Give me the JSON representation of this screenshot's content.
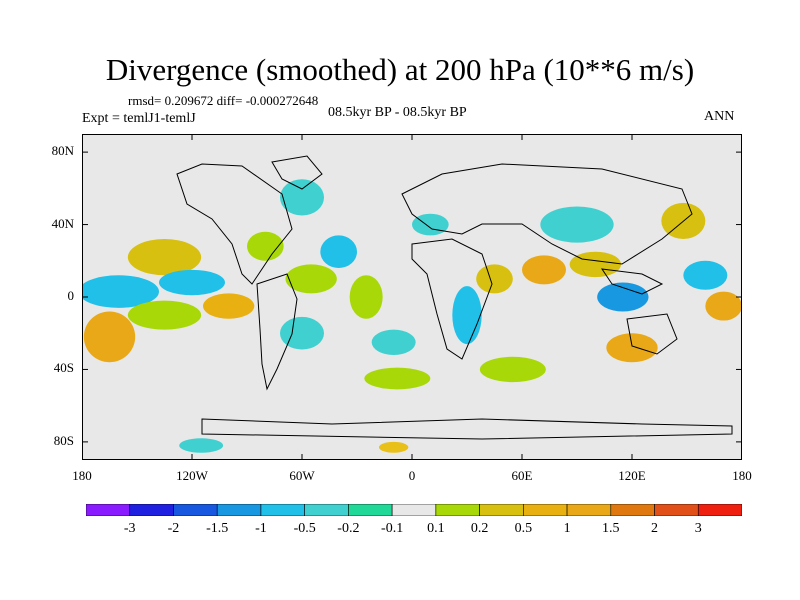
{
  "title": "Divergence (smoothed) at 200 hPa (10**6 m/s)",
  "stats": "rmsd= 0.209672 diff= -0.000272648",
  "experiment": "Expt = temlJ1-temlJ",
  "period": "08.5kyr BP - 08.5kyr BP",
  "season": "ANN",
  "map": {
    "projection": "cylindrical equidistant",
    "lon_range": [
      -180,
      180
    ],
    "lat_range": [
      -90,
      90
    ],
    "background_color": "#e8e8e8",
    "y_ticks": [
      {
        "lat": 80,
        "label": "80N"
      },
      {
        "lat": 40,
        "label": "40N"
      },
      {
        "lat": 0,
        "label": "0"
      },
      {
        "lat": -40,
        "label": "40S"
      },
      {
        "lat": -80,
        "label": "80S"
      }
    ],
    "x_ticks": [
      {
        "lon": -180,
        "label": "180"
      },
      {
        "lon": -120,
        "label": "120W"
      },
      {
        "lon": -60,
        "label": "60W"
      },
      {
        "lon": 0,
        "label": "0"
      },
      {
        "lon": 60,
        "label": "60E"
      },
      {
        "lon": 120,
        "label": "120E"
      },
      {
        "lon": 180,
        "label": "180"
      }
    ],
    "anomaly_blobs": [
      {
        "lon": -165,
        "lat": -22,
        "rlon": 14,
        "rlat": 14,
        "color": "#e8a818"
      },
      {
        "lon": -160,
        "lat": 3,
        "rlon": 22,
        "rlat": 9,
        "color": "#20c0e8"
      },
      {
        "lon": -135,
        "lat": 22,
        "rlon": 20,
        "rlat": 10,
        "color": "#d8c010"
      },
      {
        "lon": -135,
        "lat": -10,
        "rlon": 20,
        "rlat": 8,
        "color": "#a8d808"
      },
      {
        "lon": -120,
        "lat": 8,
        "rlon": 18,
        "rlat": 7,
        "color": "#20c0e8"
      },
      {
        "lon": -100,
        "lat": -5,
        "rlon": 14,
        "rlat": 7,
        "color": "#e8b010"
      },
      {
        "lon": -80,
        "lat": 28,
        "rlon": 10,
        "rlat": 8,
        "color": "#a8d808"
      },
      {
        "lon": -60,
        "lat": 55,
        "rlon": 12,
        "rlat": 10,
        "color": "#40d0d0"
      },
      {
        "lon": -55,
        "lat": 10,
        "rlon": 14,
        "rlat": 8,
        "color": "#a8d808"
      },
      {
        "lon": -60,
        "lat": -20,
        "rlon": 12,
        "rlat": 9,
        "color": "#40d0d0"
      },
      {
        "lon": -40,
        "lat": 25,
        "rlon": 10,
        "rlat": 9,
        "color": "#20c0e8"
      },
      {
        "lon": -25,
        "lat": 0,
        "rlon": 9,
        "rlat": 12,
        "color": "#a8d808"
      },
      {
        "lon": -10,
        "lat": -25,
        "rlon": 12,
        "rlat": 7,
        "color": "#40d0d0"
      },
      {
        "lon": -8,
        "lat": -45,
        "rlon": 18,
        "rlat": 6,
        "color": "#a8d808"
      },
      {
        "lon": 10,
        "lat": 40,
        "rlon": 10,
        "rlat": 6,
        "color": "#40d0d0"
      },
      {
        "lon": 30,
        "lat": -10,
        "rlon": 8,
        "rlat": 16,
        "color": "#20c0e8"
      },
      {
        "lon": 45,
        "lat": 10,
        "rlon": 10,
        "rlat": 8,
        "color": "#d8c010"
      },
      {
        "lon": 55,
        "lat": -40,
        "rlon": 18,
        "rlat": 7,
        "color": "#a8d808"
      },
      {
        "lon": 72,
        "lat": 15,
        "rlon": 12,
        "rlat": 8,
        "color": "#e8a818"
      },
      {
        "lon": 90,
        "lat": 40,
        "rlon": 20,
        "rlat": 10,
        "color": "#40d0d0"
      },
      {
        "lon": 100,
        "lat": 18,
        "rlon": 14,
        "rlat": 7,
        "color": "#d8c010"
      },
      {
        "lon": 115,
        "lat": 0,
        "rlon": 14,
        "rlat": 8,
        "color": "#1898e0"
      },
      {
        "lon": 120,
        "lat": -28,
        "rlon": 14,
        "rlat": 8,
        "color": "#e8a818"
      },
      {
        "lon": 148,
        "lat": 42,
        "rlon": 12,
        "rlat": 10,
        "color": "#d8c010"
      },
      {
        "lon": 160,
        "lat": 12,
        "rlon": 12,
        "rlat": 8,
        "color": "#20c0e8"
      },
      {
        "lon": 170,
        "lat": -5,
        "rlon": 10,
        "rlat": 8,
        "color": "#e8a818"
      },
      {
        "lon": -115,
        "lat": -82,
        "rlon": 12,
        "rlat": 4,
        "color": "#40d0d0"
      },
      {
        "lon": -10,
        "lat": -83,
        "rlon": 8,
        "rlat": 3,
        "color": "#e8c018"
      }
    ]
  },
  "colorbar": {
    "labels": [
      "-3",
      "-2",
      "-1.5",
      "-1",
      "-0.5",
      "-0.2",
      "-0.1",
      "0.1",
      "0.2",
      "0.5",
      "1",
      "1.5",
      "2",
      "3"
    ],
    "colors": [
      "#8a1aff",
      "#2020e0",
      "#1858e0",
      "#1898e0",
      "#20c0e8",
      "#40d0d0",
      "#20d898",
      "#e8e8e8",
      "#a8d808",
      "#d8c010",
      "#e8b010",
      "#e8a818",
      "#e07810",
      "#e05018",
      "#f02010"
    ]
  }
}
